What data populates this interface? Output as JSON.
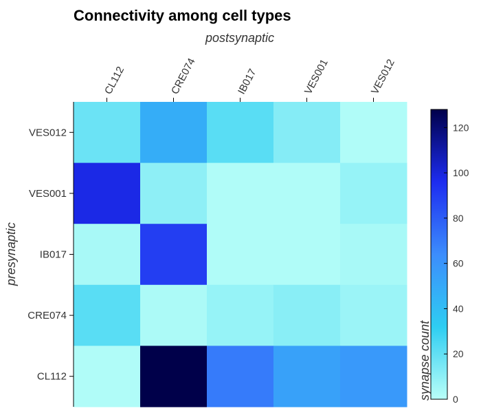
{
  "chart_data": {
    "type": "heatmap",
    "title": "Connectivity among cell types",
    "xlabel": "postsynaptic",
    "ylabel": "presynaptic",
    "x_categories": [
      "CL112",
      "CRE074",
      "IB017",
      "VES001",
      "VES012"
    ],
    "y_categories": [
      "VES012",
      "VES001",
      "IB017",
      "CRE074",
      "CL112"
    ],
    "values": [
      [
        18,
        48,
        22,
        12,
        2
      ],
      [
        98,
        10,
        2,
        2,
        8
      ],
      [
        4,
        90,
        2,
        2,
        4
      ],
      [
        22,
        3,
        8,
        11,
        7
      ],
      [
        2,
        128,
        70,
        54,
        58
      ]
    ],
    "colorbar": {
      "label": "synapse count",
      "range": [
        0,
        128
      ],
      "ticks": [
        "0",
        "20",
        "40",
        "60",
        "80",
        "100",
        "120"
      ],
      "tick_values": [
        0,
        20,
        40,
        60,
        80,
        100,
        120
      ],
      "colormap": [
        "#b9fff8",
        "#2ecdf2",
        "#3c8dfc",
        "#1d2cf0",
        "#00004a"
      ]
    }
  }
}
